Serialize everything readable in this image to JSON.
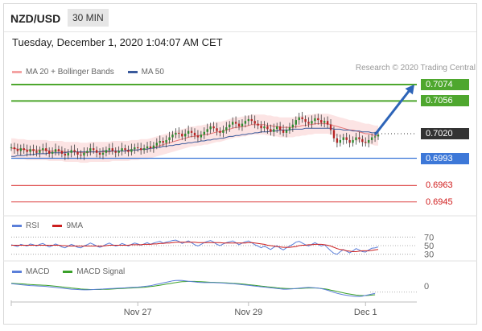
{
  "header": {
    "pair": "NZD/USD",
    "timeframe": "30 MIN",
    "datetime": "Tuesday, December 1, 2020 1:04:07 AM CET",
    "credit": "Research © 2020 Trading Central"
  },
  "legends": {
    "price": [
      {
        "label": "MA 20 + Bollinger Bands",
        "color": "#f4a3a3"
      },
      {
        "label": "MA 50",
        "color": "#3a5a9c"
      }
    ],
    "rsi": [
      {
        "label": "RSI",
        "color": "#5b7fd9"
      },
      {
        "label": "9MA",
        "color": "#cc1f1f"
      }
    ],
    "macd": [
      {
        "label": "MACD",
        "color": "#5b7fd9"
      },
      {
        "label": "MACD Signal",
        "color": "#3aa02a"
      }
    ]
  },
  "chart_data": {
    "type": "line",
    "price_range": [
      0.6935,
      0.7082
    ],
    "levels": [
      {
        "value": 0.7074,
        "label": "0.7074",
        "color": "#4ea72e",
        "style": "solid",
        "tag": "fill"
      },
      {
        "value": 0.7056,
        "label": "0.7056",
        "color": "#4ea72e",
        "style": "solid",
        "tag": "fill"
      },
      {
        "value": 0.702,
        "label": "0.7020",
        "color": "#333333",
        "style": "dotted",
        "tag": "fill"
      },
      {
        "value": 0.6993,
        "label": "0.6993",
        "color": "#3d78d8",
        "style": "solid",
        "tag": "fill"
      },
      {
        "value": 0.6963,
        "label": "0.6963",
        "color": "#e05555",
        "style": "solid",
        "tag": "plain"
      },
      {
        "value": 0.6945,
        "label": "0.6945",
        "color": "#e05555",
        "style": "solid",
        "tag": "plain"
      }
    ],
    "close": [
      0.7005,
      0.7003,
      0.7001,
      0.7004,
      0.7002,
      0.7,
      0.7003,
      0.7001,
      0.6999,
      0.7002,
      0.7004,
      0.7001,
      0.6998,
      0.7,
      0.7003,
      0.7001,
      0.6998,
      0.6996,
      0.6999,
      0.7002,
      0.7,
      0.6997,
      0.6996,
      0.6999,
      0.7001,
      0.7004,
      0.7002,
      0.6999,
      0.6997,
      0.6999,
      0.7002,
      0.7004,
      0.7001,
      0.6999,
      0.7001,
      0.7004,
      0.7002,
      0.7,
      0.7003,
      0.7005,
      0.7004,
      0.7002,
      0.7004,
      0.7006,
      0.7004,
      0.7007,
      0.701,
      0.7012,
      0.701,
      0.7013,
      0.7016,
      0.7019,
      0.7021,
      0.702,
      0.7017,
      0.702,
      0.7023,
      0.7021,
      0.7018,
      0.7016,
      0.7019,
      0.7022,
      0.7025,
      0.7028,
      0.7026,
      0.7023,
      0.7021,
      0.7024,
      0.7027,
      0.703,
      0.7033,
      0.7031,
      0.7028,
      0.7031,
      0.7034,
      0.7036,
      0.7034,
      0.7031,
      0.7029,
      0.7026,
      0.7028,
      0.7025,
      0.7022,
      0.7025,
      0.7028,
      0.7024,
      0.7021,
      0.7024,
      0.7027,
      0.703,
      0.7035,
      0.7038,
      0.7036,
      0.7033,
      0.7031,
      0.7034,
      0.7037,
      0.7035,
      0.7032,
      0.7034,
      0.703,
      0.7024,
      0.7015,
      0.701,
      0.7013,
      0.7016,
      0.7013,
      0.701,
      0.7013,
      0.7016,
      0.7014,
      0.7011,
      0.701,
      0.7013,
      0.7016,
      0.7017,
      0.7019
    ],
    "ma20": [
      0.7004,
      0.7004,
      0.7003,
      0.7003,
      0.7003,
      0.7002,
      0.7002,
      0.7002,
      0.7002,
      0.7002,
      0.7002,
      0.7002,
      0.7001,
      0.7001,
      0.7001,
      0.7001,
      0.7001,
      0.7,
      0.7,
      0.7,
      0.7,
      0.7,
      0.6999,
      0.6999,
      0.6999,
      0.7,
      0.7,
      0.7,
      0.7,
      0.7,
      0.7,
      0.7,
      0.7001,
      0.7001,
      0.7001,
      0.7001,
      0.7001,
      0.7001,
      0.7002,
      0.7002,
      0.7002,
      0.7003,
      0.7003,
      0.7003,
      0.7004,
      0.7005,
      0.7006,
      0.7007,
      0.7008,
      0.7009,
      0.701,
      0.7011,
      0.7012,
      0.7013,
      0.7014,
      0.7015,
      0.7016,
      0.7017,
      0.7017,
      0.7018,
      0.7018,
      0.7019,
      0.7019,
      0.702,
      0.7021,
      0.7022,
      0.7022,
      0.7023,
      0.7024,
      0.7025,
      0.7026,
      0.7027,
      0.7027,
      0.7028,
      0.7028,
      0.7029,
      0.703,
      0.703,
      0.703,
      0.703,
      0.703,
      0.7029,
      0.7029,
      0.7028,
      0.7028,
      0.7027,
      0.7027,
      0.7027,
      0.7027,
      0.7027,
      0.7028,
      0.7028,
      0.7029,
      0.7029,
      0.703,
      0.703,
      0.7031,
      0.7031,
      0.7031,
      0.7031,
      0.7031,
      0.703,
      0.7029,
      0.7028,
      0.7027,
      0.7026,
      0.7025,
      0.7024,
      0.7024,
      0.7023,
      0.7022,
      0.7021,
      0.702,
      0.702,
      0.7019,
      0.7018,
      0.7018
    ],
    "ma50": [
      0.6995,
      0.6995,
      0.6996,
      0.6996,
      0.6996,
      0.6997,
      0.6997,
      0.6997,
      0.6998,
      0.6998,
      0.6998,
      0.6998,
      0.6999,
      0.6999,
      0.6999,
      0.6999,
      0.6999,
      0.6999,
      0.7,
      0.7,
      0.7,
      0.7,
      0.7,
      0.7,
      0.7,
      0.7,
      0.7,
      0.7,
      0.7,
      0.7001,
      0.7001,
      0.7001,
      0.7001,
      0.7001,
      0.7001,
      0.7001,
      0.7001,
      0.7002,
      0.7002,
      0.7002,
      0.7002,
      0.7003,
      0.7003,
      0.7003,
      0.7004,
      0.7004,
      0.7005,
      0.7005,
      0.7006,
      0.7006,
      0.7007,
      0.7007,
      0.7008,
      0.7008,
      0.7009,
      0.7009,
      0.701,
      0.701,
      0.7011,
      0.7011,
      0.7012,
      0.7012,
      0.7013,
      0.7013,
      0.7014,
      0.7014,
      0.7015,
      0.7015,
      0.7016,
      0.7017,
      0.7017,
      0.7018,
      0.7018,
      0.7019,
      0.7019,
      0.702,
      0.702,
      0.7021,
      0.7021,
      0.7022,
      0.7022,
      0.7022,
      0.7023,
      0.7023,
      0.7023,
      0.7024,
      0.7024,
      0.7024,
      0.7024,
      0.7025,
      0.7025,
      0.7025,
      0.7025,
      0.7026,
      0.7026,
      0.7026,
      0.7026,
      0.7026,
      0.7026,
      0.7026,
      0.7026,
      0.7026,
      0.7025,
      0.7025,
      0.7025,
      0.7024,
      0.7024,
      0.7024,
      0.7023,
      0.7023,
      0.7023,
      0.7022,
      0.7022,
      0.7022,
      0.7021,
      0.7021,
      0.7021
    ],
    "band_width": 0.0011,
    "forecast": {
      "from_index": 115,
      "from_value": 0.7019,
      "to_value": 0.7074
    },
    "rsi": {
      "range": [
        20,
        80
      ],
      "ticks": [
        70,
        50,
        30
      ],
      "values": [
        52,
        50,
        48,
        53,
        51,
        49,
        54,
        52,
        49,
        53,
        55,
        51,
        47,
        50,
        54,
        51,
        47,
        45,
        49,
        53,
        50,
        46,
        45,
        49,
        52,
        56,
        53,
        49,
        46,
        49,
        53,
        56,
        52,
        49,
        51,
        55,
        52,
        49,
        53,
        56,
        54,
        51,
        54,
        57,
        53,
        56,
        58,
        60,
        56,
        58,
        60,
        62,
        63,
        60,
        55,
        58,
        61,
        57,
        52,
        49,
        53,
        57,
        60,
        62,
        58,
        53,
        50,
        54,
        57,
        59,
        61,
        57,
        52,
        56,
        59,
        61,
        57,
        52,
        49,
        45,
        49,
        45,
        41,
        46,
        50,
        44,
        40,
        45,
        49,
        53,
        58,
        60,
        56,
        52,
        49,
        53,
        57,
        53,
        49,
        52,
        45,
        38,
        32,
        30,
        36,
        41,
        37,
        33,
        38,
        43,
        40,
        36,
        35,
        40,
        44,
        45,
        47
      ],
      "ma9": [
        51,
        51,
        51,
        51,
        51,
        51,
        51,
        51,
        51,
        51,
        51,
        51,
        51,
        51,
        51,
        51,
        50,
        50,
        49,
        49,
        49,
        49,
        49,
        49,
        49,
        49,
        49,
        49,
        49,
        49,
        50,
        51,
        51,
        51,
        51,
        51,
        51,
        51,
        52,
        52,
        52,
        52,
        53,
        53,
        53,
        54,
        54,
        55,
        55,
        56,
        56,
        57,
        58,
        58,
        58,
        58,
        58,
        58,
        58,
        57,
        57,
        57,
        57,
        57,
        57,
        57,
        57,
        56,
        56,
        56,
        56,
        56,
        56,
        56,
        56,
        57,
        57,
        56,
        55,
        54,
        53,
        51,
        50,
        49,
        48,
        47,
        46,
        46,
        46,
        47,
        48,
        50,
        51,
        51,
        52,
        52,
        53,
        53,
        53,
        52,
        51,
        49,
        46,
        43,
        41,
        40,
        38,
        37,
        36,
        36,
        37,
        38,
        38,
        38,
        39,
        40,
        41
      ]
    },
    "macd": {
      "zero_tick": "0",
      "macd": [
        0.12,
        0.1,
        0.08,
        0.06,
        0.04,
        0.02,
        0.01,
        0.0,
        -0.01,
        -0.02,
        -0.03,
        -0.04,
        -0.06,
        -0.08,
        -0.1,
        -0.12,
        -0.14,
        -0.16,
        -0.18,
        -0.2,
        -0.21,
        -0.22,
        -0.23,
        -0.24,
        -0.24,
        -0.23,
        -0.22,
        -0.21,
        -0.2,
        -0.19,
        -0.18,
        -0.17,
        -0.16,
        -0.15,
        -0.14,
        -0.13,
        -0.12,
        -0.11,
        -0.1,
        -0.09,
        -0.08,
        -0.06,
        -0.04,
        -0.02,
        0.0,
        0.04,
        0.08,
        0.12,
        0.16,
        0.2,
        0.24,
        0.28,
        0.3,
        0.31,
        0.3,
        0.28,
        0.26,
        0.24,
        0.22,
        0.2,
        0.19,
        0.18,
        0.18,
        0.18,
        0.18,
        0.17,
        0.16,
        0.15,
        0.14,
        0.13,
        0.12,
        0.1,
        0.08,
        0.06,
        0.04,
        0.02,
        0.0,
        -0.02,
        -0.04,
        -0.06,
        -0.08,
        -0.1,
        -0.12,
        -0.14,
        -0.16,
        -0.18,
        -0.2,
        -0.2,
        -0.19,
        -0.18,
        -0.16,
        -0.14,
        -0.12,
        -0.11,
        -0.1,
        -0.11,
        -0.12,
        -0.14,
        -0.17,
        -0.21,
        -0.26,
        -0.32,
        -0.38,
        -0.44,
        -0.48,
        -0.52,
        -0.55,
        -0.58,
        -0.6,
        -0.62,
        -0.62,
        -0.6,
        -0.56,
        -0.52,
        -0.48,
        -0.44
      ],
      "signal": [
        0.14,
        0.13,
        0.12,
        0.11,
        0.1,
        0.08,
        0.07,
        0.06,
        0.05,
        0.04,
        0.03,
        0.02,
        0.01,
        -0.01,
        -0.03,
        -0.05,
        -0.07,
        -0.09,
        -0.11,
        -0.13,
        -0.15,
        -0.17,
        -0.19,
        -0.2,
        -0.21,
        -0.22,
        -0.22,
        -0.22,
        -0.22,
        -0.21,
        -0.21,
        -0.2,
        -0.19,
        -0.18,
        -0.17,
        -0.16,
        -0.15,
        -0.14,
        -0.13,
        -0.12,
        -0.11,
        -0.1,
        -0.09,
        -0.07,
        -0.05,
        -0.03,
        0.0,
        0.03,
        0.06,
        0.09,
        0.12,
        0.15,
        0.18,
        0.21,
        0.23,
        0.24,
        0.25,
        0.25,
        0.25,
        0.24,
        0.23,
        0.22,
        0.21,
        0.2,
        0.2,
        0.19,
        0.18,
        0.17,
        0.16,
        0.15,
        0.14,
        0.13,
        0.12,
        0.1,
        0.08,
        0.06,
        0.04,
        0.02,
        0.0,
        -0.02,
        -0.04,
        -0.06,
        -0.08,
        -0.1,
        -0.12,
        -0.14,
        -0.15,
        -0.16,
        -0.17,
        -0.17,
        -0.17,
        -0.16,
        -0.15,
        -0.14,
        -0.13,
        -0.13,
        -0.13,
        -0.14,
        -0.16,
        -0.18,
        -0.21,
        -0.25,
        -0.29,
        -0.33,
        -0.37,
        -0.41,
        -0.45,
        -0.48,
        -0.51,
        -0.54,
        -0.56,
        -0.57,
        -0.57,
        -0.56,
        -0.54,
        -0.52
      ],
      "range": [
        -0.8,
        0.5
      ]
    },
    "x_ticks": [
      {
        "index": 40,
        "label": "Nov 27"
      },
      {
        "index": 75,
        "label": "Nov 29"
      },
      {
        "index": 112,
        "label": "Dec 1"
      }
    ]
  }
}
